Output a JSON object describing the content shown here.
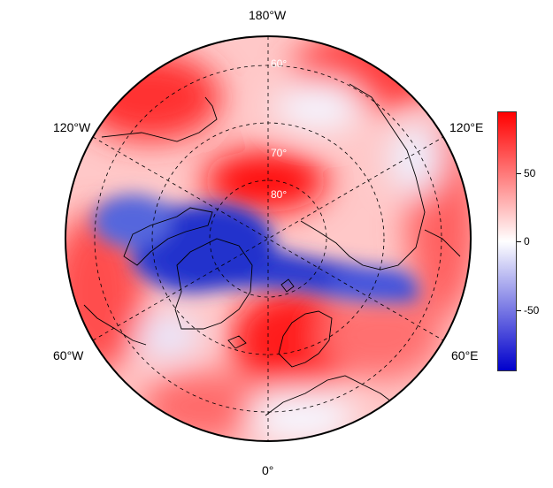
{
  "longitude_labels": {
    "top": "180°W",
    "upper_left": "120°W",
    "upper_right": "120°E",
    "lower_left": "60°W",
    "lower_right": "60°E",
    "bottom": "0°"
  },
  "latitude_labels": [
    "60°",
    "70°",
    "80°"
  ],
  "colorbar": {
    "ticks": [
      "50",
      "0",
      "-50"
    ],
    "colors": {
      "max": "#ff0000",
      "mid": "#ffffff",
      "min": "#0000cc"
    }
  },
  "colors": {
    "positive": "#ff1a1a",
    "negative": "#2233cc",
    "grid": "#000000"
  }
}
